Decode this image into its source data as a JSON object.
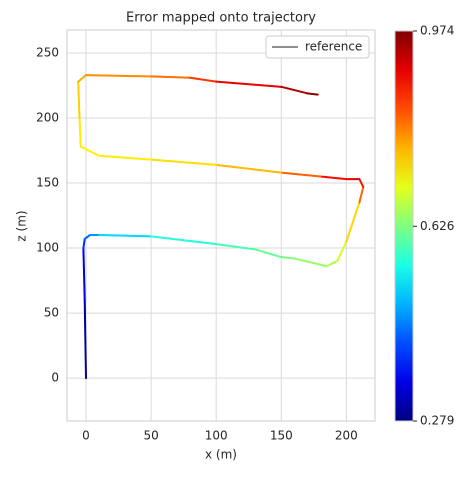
{
  "chart_data": {
    "type": "line",
    "title": "Error mapped onto trajectory",
    "xlabel": "x (m)",
    "ylabel": "z (m)",
    "x": [
      0,
      -1,
      -2,
      -1,
      3,
      10,
      50,
      100,
      130,
      150,
      160,
      185,
      193,
      200,
      210,
      213,
      210,
      200,
      180,
      150,
      100,
      50,
      10,
      -4,
      -5,
      -6,
      0,
      50,
      80,
      100,
      150,
      170,
      178
    ],
    "series": [
      {
        "name": "reference",
        "color": "#6b6b6b",
        "values": [
          0,
          60,
          100,
          107,
          110,
          110,
          109,
          103,
          99,
          93,
          92,
          86,
          90,
          105,
          135,
          147,
          153,
          153,
          155,
          158,
          164,
          168,
          171,
          178,
          200,
          228,
          233,
          232,
          231,
          228,
          224,
          219,
          218
        ],
        "error": [
          0.28,
          0.33,
          0.38,
          0.42,
          0.45,
          0.48,
          0.55,
          0.58,
          0.6,
          0.62,
          0.63,
          0.65,
          0.67,
          0.7,
          0.78,
          0.85,
          0.9,
          0.9,
          0.86,
          0.78,
          0.74,
          0.73,
          0.72,
          0.72,
          0.73,
          0.76,
          0.78,
          0.8,
          0.82,
          0.88,
          0.92,
          0.96,
          0.97
        ]
      }
    ],
    "xlim": [
      -14.6,
      222
    ],
    "ylim": [
      -33,
      267.7
    ],
    "xticks": [
      0,
      50,
      100,
      150,
      200
    ],
    "yticks": [
      0,
      50,
      100,
      150,
      200,
      250
    ],
    "clim": [
      0.279,
      0.974
    ],
    "cticks": [
      0.279,
      0.626,
      0.974
    ],
    "grid": true,
    "legend": "upper right"
  }
}
